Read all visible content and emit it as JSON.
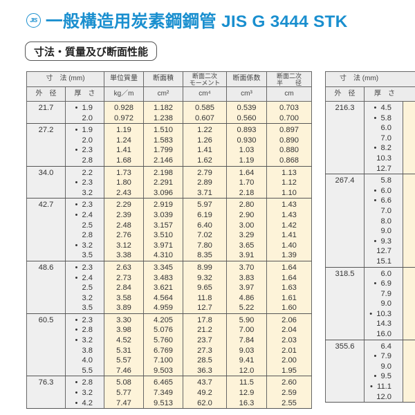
{
  "header": {
    "jis_mark": "JIS",
    "title": "一般構造用炭素鋼鋼管 JIS G 3444 STK",
    "section_badge": "寸法・質量及び断面性能"
  },
  "table_left": {
    "headers": {
      "dimensions": "寸　法 (mm)",
      "outer_diameter": "外　径",
      "thickness": "厚　さ",
      "unit_mass": "単位質量",
      "unit_mass_unit": "kg／m",
      "area": "断面積",
      "area_unit": "cm²",
      "moment_line1": "断面二次",
      "moment_line2": "モーメント",
      "moment_unit": "cm⁴",
      "modulus": "断面係数",
      "modulus_unit": "cm³",
      "radius_line1": "断面二次",
      "radius_line2": "半　　径",
      "radius_unit": "cm"
    },
    "groups": [
      {
        "od": "21.7",
        "rows": [
          {
            "mark": "•",
            "t": "1.9",
            "mass": "0.928",
            "area": "1.182",
            "I": "0.585",
            "Z": "0.539",
            "i": "0.703"
          },
          {
            "mark": "",
            "t": "2.0",
            "mass": "0.972",
            "area": "1.238",
            "I": "0.607",
            "Z": "0.560",
            "i": "0.700"
          }
        ]
      },
      {
        "od": "27.2",
        "rows": [
          {
            "mark": "•",
            "t": "1.9",
            "mass": "1.19",
            "area": "1.510",
            "I": "1.22",
            "Z": "0.893",
            "i": "0.897"
          },
          {
            "mark": "",
            "t": "2.0",
            "mass": "1.24",
            "area": "1.583",
            "I": "1.26",
            "Z": "0.930",
            "i": "0.890"
          },
          {
            "mark": "•",
            "t": "2.3",
            "mass": "1.41",
            "area": "1.799",
            "I": "1.41",
            "Z": "1.03",
            "i": "0.880"
          },
          {
            "mark": "",
            "t": "2.8",
            "mass": "1.68",
            "area": "2.146",
            "I": "1.62",
            "Z": "1.19",
            "i": "0.868"
          }
        ]
      },
      {
        "od": "34.0",
        "rows": [
          {
            "mark": "",
            "t": "2.2",
            "mass": "1.73",
            "area": "2.198",
            "I": "2.79",
            "Z": "1.64",
            "i": "1.13"
          },
          {
            "mark": "•",
            "t": "2.3",
            "mass": "1.80",
            "area": "2.291",
            "I": "2.89",
            "Z": "1.70",
            "i": "1.12"
          },
          {
            "mark": "",
            "t": "3.2",
            "mass": "2.43",
            "area": "3.096",
            "I": "3.71",
            "Z": "2.18",
            "i": "1.10"
          }
        ]
      },
      {
        "od": "42.7",
        "rows": [
          {
            "mark": "•",
            "t": "2.3",
            "mass": "2.29",
            "area": "2.919",
            "I": "5.97",
            "Z": "2.80",
            "i": "1.43"
          },
          {
            "mark": "•",
            "t": "2.4",
            "mass": "2.39",
            "area": "3.039",
            "I": "6.19",
            "Z": "2.90",
            "i": "1.43"
          },
          {
            "mark": "",
            "t": "2.5",
            "mass": "2.48",
            "area": "3.157",
            "I": "6.40",
            "Z": "3.00",
            "i": "1.42"
          },
          {
            "mark": "",
            "t": "2.8",
            "mass": "2.76",
            "area": "3.510",
            "I": "7.02",
            "Z": "3.29",
            "i": "1.41"
          },
          {
            "mark": "•",
            "t": "3.2",
            "mass": "3.12",
            "area": "3.971",
            "I": "7.80",
            "Z": "3.65",
            "i": "1.40"
          },
          {
            "mark": "",
            "t": "3.5",
            "mass": "3.38",
            "area": "4.310",
            "I": "8.35",
            "Z": "3.91",
            "i": "1.39"
          }
        ]
      },
      {
        "od": "48.6",
        "rows": [
          {
            "mark": "•",
            "t": "2.3",
            "mass": "2.63",
            "area": "3.345",
            "I": "8.99",
            "Z": "3.70",
            "i": "1.64"
          },
          {
            "mark": "•",
            "t": "2.4",
            "mass": "2.73",
            "area": "3.483",
            "I": "9.32",
            "Z": "3.83",
            "i": "1.64"
          },
          {
            "mark": "",
            "t": "2.5",
            "mass": "2.84",
            "area": "3.621",
            "I": "9.65",
            "Z": "3.97",
            "i": "1.63"
          },
          {
            "mark": "",
            "t": "3.2",
            "mass": "3.58",
            "area": "4.564",
            "I": "11.8",
            "Z": "4.86",
            "i": "1.61"
          },
          {
            "mark": "",
            "t": "3.5",
            "mass": "3.89",
            "area": "4.959",
            "I": "12.7",
            "Z": "5.22",
            "i": "1.60"
          }
        ]
      },
      {
        "od": "60.5",
        "rows": [
          {
            "mark": "•",
            "t": "2.3",
            "mass": "3.30",
            "area": "4.205",
            "I": "17.8",
            "Z": "5.90",
            "i": "2.06"
          },
          {
            "mark": "•",
            "t": "2.8",
            "mass": "3.98",
            "area": "5.076",
            "I": "21.2",
            "Z": "7.00",
            "i": "2.04"
          },
          {
            "mark": "•",
            "t": "3.2",
            "mass": "4.52",
            "area": "5.760",
            "I": "23.7",
            "Z": "7.84",
            "i": "2.03"
          },
          {
            "mark": "",
            "t": "3.8",
            "mass": "5.31",
            "area": "6.769",
            "I": "27.3",
            "Z": "9.03",
            "i": "2.01"
          },
          {
            "mark": "",
            "t": "4.0",
            "mass": "5.57",
            "area": "7.100",
            "I": "28.5",
            "Z": "9.41",
            "i": "2.00"
          },
          {
            "mark": "",
            "t": "5.5",
            "mass": "7.46",
            "area": "9.503",
            "I": "36.3",
            "Z": "12.0",
            "i": "1.95"
          }
        ]
      },
      {
        "od": "76.3",
        "rows": [
          {
            "mark": "•",
            "t": "2.8",
            "mass": "5.08",
            "area": "6.465",
            "I": "43.7",
            "Z": "11.5",
            "i": "2.60"
          },
          {
            "mark": "•",
            "t": "3.2",
            "mass": "5.77",
            "area": "7.349",
            "I": "49.2",
            "Z": "12.9",
            "i": "2.59"
          },
          {
            "mark": "•",
            "t": "4.2",
            "mass": "7.47",
            "area": "9.513",
            "I": "62.0",
            "Z": "16.3",
            "i": "2.55"
          }
        ]
      }
    ]
  },
  "table_right": {
    "headers": {
      "dimensions": "寸　法 (mm)",
      "outer_diameter": "外　径",
      "thickness": "厚　さ"
    },
    "groups": [
      {
        "od": "216.3",
        "rows": [
          {
            "mark": "•",
            "t": "4.5"
          },
          {
            "mark": "•",
            "t": "5.8"
          },
          {
            "mark": "",
            "t": "6.0"
          },
          {
            "mark": "",
            "t": "7.0"
          },
          {
            "mark": "•",
            "t": "8.2"
          },
          {
            "mark": "",
            "t": "10.3"
          },
          {
            "mark": "",
            "t": "12.7"
          }
        ]
      },
      {
        "od": "267.4",
        "rows": [
          {
            "mark": "",
            "t": "5.8"
          },
          {
            "mark": "•",
            "t": "6.0"
          },
          {
            "mark": "•",
            "t": "6.6"
          },
          {
            "mark": "",
            "t": "7.0"
          },
          {
            "mark": "",
            "t": "8.0"
          },
          {
            "mark": "",
            "t": "9.0"
          },
          {
            "mark": "•",
            "t": "9.3"
          },
          {
            "mark": "",
            "t": "12.7"
          },
          {
            "mark": "",
            "t": "15.1"
          }
        ]
      },
      {
        "od": "318.5",
        "rows": [
          {
            "mark": "",
            "t": "6.0"
          },
          {
            "mark": "•",
            "t": "6.9"
          },
          {
            "mark": "",
            "t": "7.9"
          },
          {
            "mark": "",
            "t": "9.0"
          },
          {
            "mark": "•",
            "t": "10.3"
          },
          {
            "mark": "",
            "t": "14.3"
          },
          {
            "mark": "",
            "t": "16.0"
          }
        ]
      },
      {
        "od": "355.6",
        "rows": [
          {
            "mark": "",
            "t": "6.4"
          },
          {
            "mark": "•",
            "t": "7.9"
          },
          {
            "mark": "",
            "t": "9.0"
          },
          {
            "mark": "•",
            "t": "9.5"
          },
          {
            "mark": "•",
            "t": "11.1"
          },
          {
            "mark": "",
            "t": "12.0"
          }
        ]
      }
    ]
  }
}
